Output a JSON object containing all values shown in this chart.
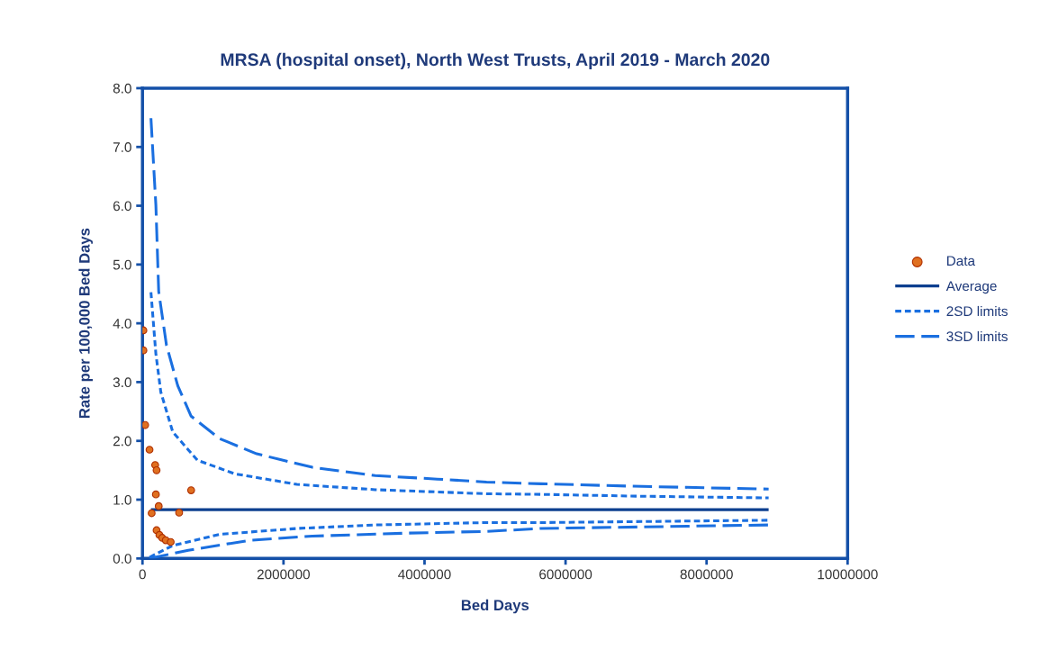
{
  "chart_data": {
    "type": "scatter",
    "title": "MRSA (hospital onset), North West Trusts, April 2019 - March 2020",
    "xlabel": "Bed Days",
    "ylabel": "Rate per 100,000 Bed Days",
    "xlim": [
      0,
      10000000
    ],
    "xticks": [
      0,
      2000000,
      4000000,
      6000000,
      8000000,
      10000000
    ],
    "ylim": [
      0,
      8
    ],
    "yticks": [
      {
        "value": 0,
        "label": "0.0"
      },
      {
        "value": 1,
        "label": "1.0"
      },
      {
        "value": 2,
        "label": "2.0"
      },
      {
        "value": 3,
        "label": "3.0"
      },
      {
        "value": 4,
        "label": "4.0"
      },
      {
        "value": 5,
        "label": "5.0"
      },
      {
        "value": 6,
        "label": "6.0"
      },
      {
        "value": 7,
        "label": "7.0"
      },
      {
        "value": 8,
        "label": "8.0"
      }
    ],
    "grid": false,
    "legend": "right",
    "series": [
      {
        "name": "Data",
        "type": "scatter",
        "marker": "circle",
        "color": "#e07020",
        "x": [
          13000,
          13000,
          38000,
          100000,
          180000,
          200000,
          190000,
          230000,
          130000,
          690000,
          520000,
          200000,
          240000,
          280000,
          330000,
          400000
        ],
        "values": [
          3.88,
          3.54,
          2.27,
          1.85,
          1.59,
          1.5,
          1.09,
          0.89,
          0.77,
          1.16,
          0.78,
          0.48,
          0.4,
          0.35,
          0.31,
          0.28
        ]
      },
      {
        "name": "Average",
        "type": "line",
        "line_style": "solid",
        "color": "#0d3f8f",
        "x": [
          120000,
          8880000
        ],
        "values": [
          0.83,
          0.83
        ]
      },
      {
        "name": "2SD limits",
        "type": "line",
        "line_style": "dotted",
        "color": "#1a6fe0",
        "x": [
          120000,
          190000,
          260000,
          430000,
          780000,
          1310000,
          2190000,
          3300000,
          4880000,
          5650000,
          7000000,
          8880000
        ],
        "values": [
          4.53,
          3.48,
          2.83,
          2.15,
          1.67,
          1.44,
          1.26,
          1.17,
          1.1,
          1.09,
          1.06,
          1.03
        ]
      },
      {
        "type": "line",
        "line_style": "dotted",
        "color": "#1a6fe0",
        "x": [
          100000,
          430000,
          1090000,
          2190000,
          3300000,
          4880000,
          5650000,
          8880000
        ],
        "values": [
          0.02,
          0.22,
          0.41,
          0.51,
          0.57,
          0.61,
          0.61,
          0.65
        ]
      },
      {
        "name": "3SD limits",
        "type": "line",
        "line_style": "dashed",
        "color": "#1a6fe0",
        "x": [
          120000,
          190000,
          230000,
          340000,
          500000,
          690000,
          1090000,
          1620000,
          2410000,
          3300000,
          4180000,
          4880000,
          5650000,
          6920000,
          8880000
        ],
        "values": [
          7.49,
          6.01,
          4.54,
          3.63,
          2.94,
          2.42,
          2.04,
          1.78,
          1.55,
          1.41,
          1.35,
          1.3,
          1.27,
          1.23,
          1.18
        ]
      },
      {
        "type": "line",
        "line_style": "dashed",
        "color": "#1a6fe0",
        "x": [
          100000,
          650000,
          1530000,
          2410000,
          3730000,
          4880000,
          5650000,
          8880000
        ],
        "values": [
          0.0,
          0.14,
          0.31,
          0.38,
          0.43,
          0.46,
          0.51,
          0.57
        ]
      }
    ]
  }
}
